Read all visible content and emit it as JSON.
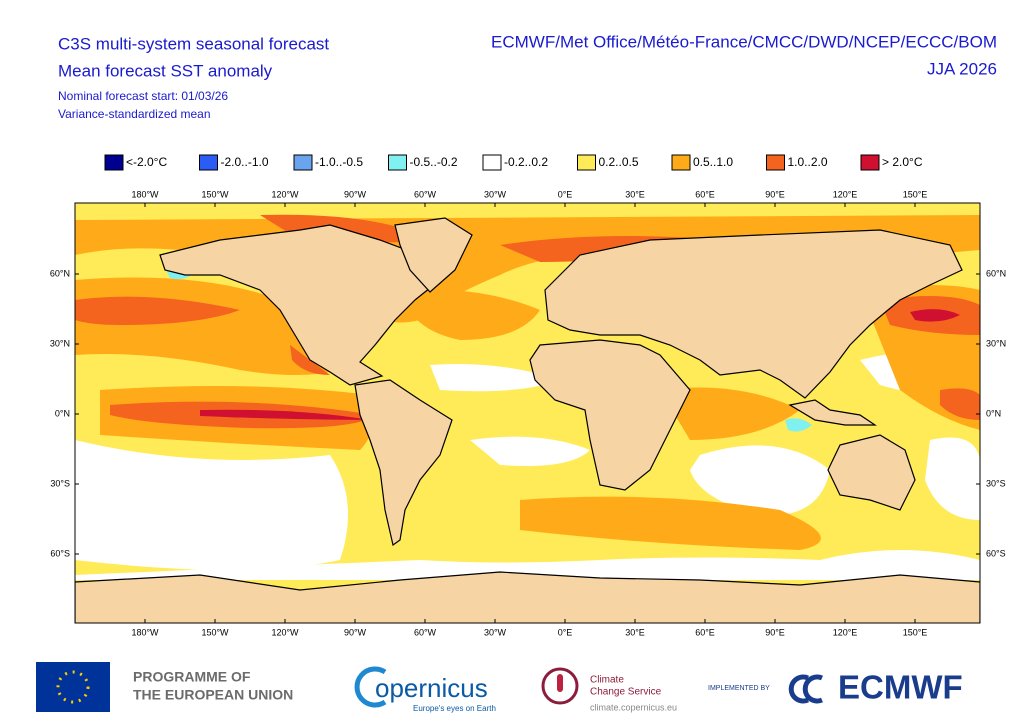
{
  "header": {
    "title": "C3S multi-system seasonal forecast",
    "subtitle": "Mean forecast SST anomaly",
    "forecast_start": "Nominal forecast start: 01/03/26",
    "method": "Variance-standardized mean",
    "systems": "ECMWF/Met Office/Météo-France/CMCC/DWD/NCEP/ECCC/BOM",
    "period": "JJA 2026"
  },
  "legend": {
    "items": [
      {
        "label": "<-2.0°C",
        "color": "#000090"
      },
      {
        "label": "-2.0..-1.0",
        "color": "#2b5cf5"
      },
      {
        "label": "-1.0..-0.5",
        "color": "#6aa4ee"
      },
      {
        "label": "-0.5..-0.2",
        "color": "#80f0f0"
      },
      {
        "label": "-0.2..0.2",
        "color": "#ffffff"
      },
      {
        "label": "0.2..0.5",
        "color": "#ffeb57"
      },
      {
        "label": "0.5..1.0",
        "color": "#ffab19"
      },
      {
        "label": "1.0..2.0",
        "color": "#f5641e"
      },
      {
        "label": "> 2.0°C",
        "color": "#d01030"
      }
    ]
  },
  "map": {
    "longitude_labels": [
      "180°W",
      "150°W",
      "120°W",
      "90°W",
      "60°W",
      "30°W",
      "0°E",
      "30°E",
      "60°E",
      "90°E",
      "120°E",
      "150°E"
    ],
    "latitude_labels": [
      "60°N",
      "30°N",
      "0°N",
      "30°S",
      "60°S"
    ]
  },
  "footer": {
    "eu": [
      "PROGRAMME OF",
      "THE EUROPEAN UNION"
    ],
    "copernicus": "opernicus",
    "copernicus_tagline": "Europe's eyes on Earth",
    "c3s": [
      "Climate",
      "Change Service"
    ],
    "c3s_url": "climate.copernicus.eu",
    "implemented_by": "IMPLEMENTED BY",
    "ecmwf": "ECMWF"
  }
}
